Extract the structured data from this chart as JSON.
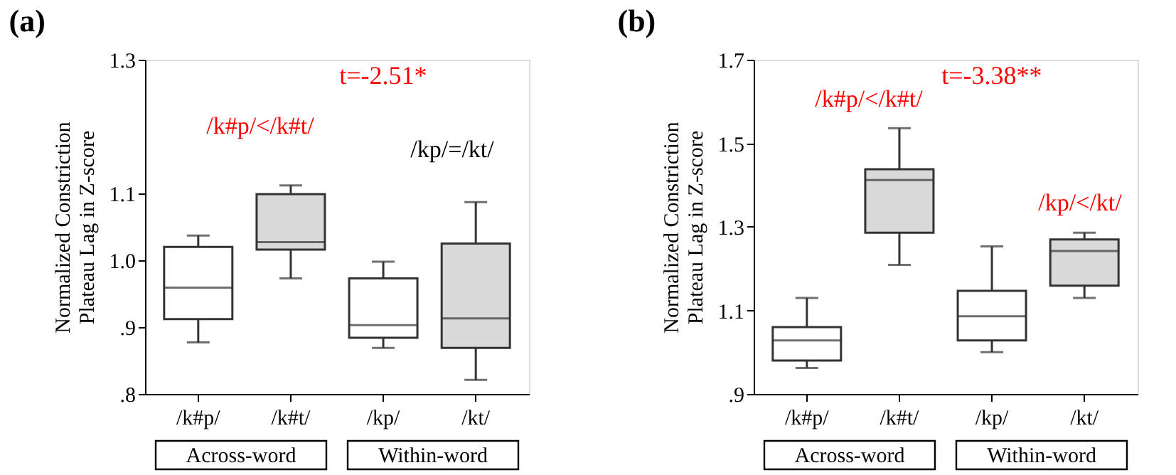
{
  "chart_data": [
    {
      "type": "box",
      "title": "(a)",
      "ylabel": "Normalized  Constriction\nPlateau Lag in Z-score",
      "categories": [
        "/k#p/",
        "/k#t/",
        "/kp/",
        "/kt/"
      ],
      "colors": [
        "#ffffff",
        "#d9d9d9",
        "#ffffff",
        "#d9d9d9"
      ],
      "boxes": [
        {
          "low": 0.877,
          "q1": 0.912,
          "median": 0.959,
          "q3": 1.02,
          "high": 1.037
        },
        {
          "low": 0.973,
          "q1": 1.016,
          "median": 1.027,
          "q3": 1.099,
          "high": 1.112
        },
        {
          "low": 0.869,
          "q1": 0.884,
          "median": 0.903,
          "q3": 0.973,
          "high": 0.998
        },
        {
          "low": 0.821,
          "q1": 0.869,
          "median": 0.913,
          "q3": 1.025,
          "high": 1.087
        }
      ],
      "ylim": [
        0.8,
        1.3
      ],
      "yticks": [
        {
          "value": 0.8,
          "label": ".8"
        },
        {
          "value": 0.9,
          "label": ".9"
        },
        {
          "value": 1.0,
          "label": "1.0"
        },
        1.1,
        1.3
      ],
      "grid": false,
      "annotations": [
        "t=-2.51*",
        "/k#p/</k#t/",
        "/kp/=/kt/",
        "Across-word",
        "Within-word"
      ]
    },
    {
      "type": "box",
      "title": "(b)",
      "ylabel": "Normalized  Constriction\nPlateau Lag in Z-score",
      "categories": [
        "/k#p/",
        "/k#t/",
        "/kp/",
        "/kt/"
      ],
      "colors": [
        "#ffffff",
        "#d9d9d9",
        "#ffffff",
        "#d9d9d9"
      ],
      "boxes": [
        {
          "low": 0.962,
          "q1": 0.98,
          "median": 1.028,
          "q3": 1.06,
          "high": 1.13
        },
        {
          "low": 1.209,
          "q1": 1.286,
          "median": 1.412,
          "q3": 1.438,
          "high": 1.536
        },
        {
          "low": 1.0,
          "q1": 1.028,
          "median": 1.086,
          "q3": 1.147,
          "high": 1.253
        },
        {
          "low": 1.13,
          "q1": 1.159,
          "median": 1.242,
          "q3": 1.27,
          "high": 1.286
        }
      ],
      "ylim": [
        0.9,
        1.7
      ],
      "yticks": [
        {
          "value": 0.9,
          "label": ".9"
        },
        1.1,
        1.3,
        1.5,
        1.7
      ],
      "grid": false,
      "annotations": [
        "t=-3.38**",
        "/k#p/</k#t/",
        "/kp/</kt/",
        "Across-word",
        "Within-word"
      ]
    }
  ]
}
